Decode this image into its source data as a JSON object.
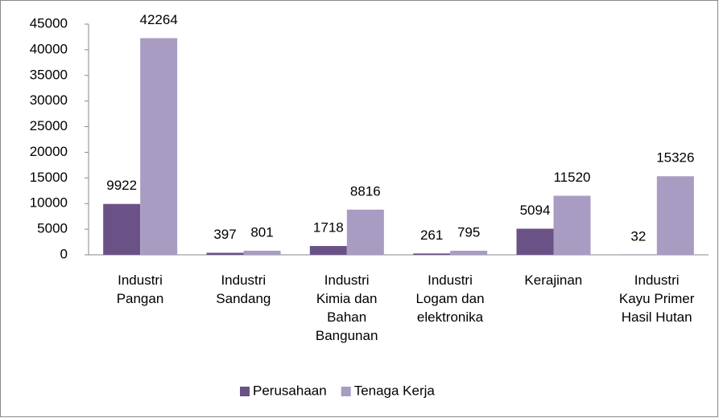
{
  "chart_data": {
    "type": "bar",
    "categories": [
      "Industri\nPangan",
      "Industri\nSandang",
      "Industri\nKimia dan\nBahan\nBangunan",
      "Industri\nLogam dan\nelektronika",
      "Kerajinan",
      "Industri\nKayu Primer\nHasil Hutan"
    ],
    "series": [
      {
        "name": "Perusahaan",
        "color": "#6a5286",
        "values": [
          9922,
          397,
          1718,
          261,
          5094,
          32
        ]
      },
      {
        "name": "Tenaga Kerja",
        "color": "#a99cc2",
        "values": [
          42264,
          801,
          8816,
          795,
          11520,
          15326
        ]
      }
    ],
    "ylim": [
      0,
      45000
    ],
    "yticks": [
      0,
      5000,
      10000,
      15000,
      20000,
      25000,
      30000,
      35000,
      40000,
      45000
    ],
    "legend": "bottom"
  }
}
